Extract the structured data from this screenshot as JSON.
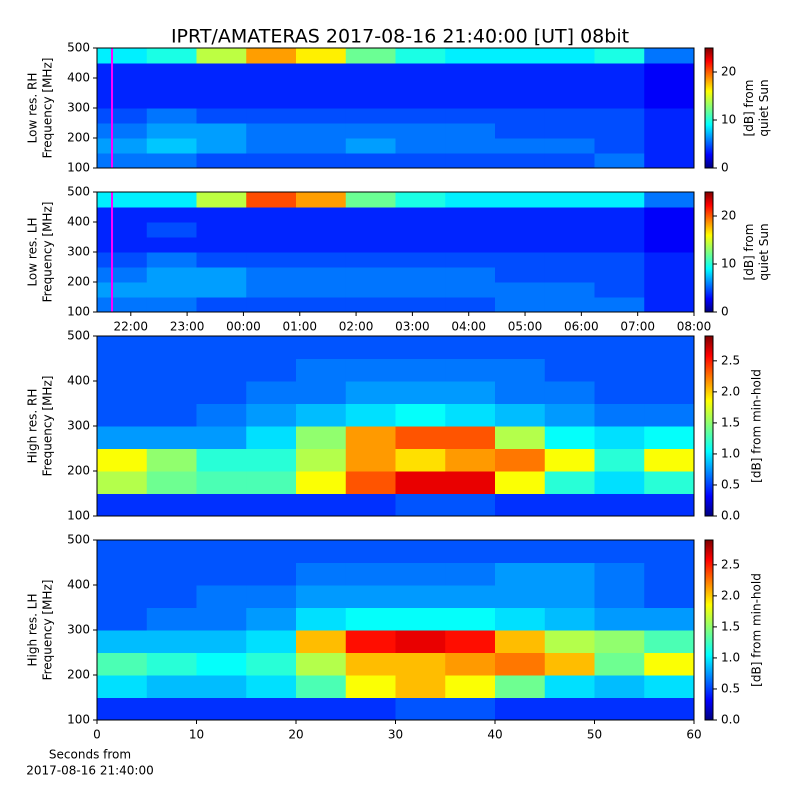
{
  "title": "IPRT/AMATERAS 2017-08-16 21:40:00 [UT]   08bit",
  "chart_data": [
    {
      "type": "heatmap",
      "colormap": "jet",
      "ylabel": [
        "Low res. RH",
        "Frequency [MHz]"
      ],
      "xlim": [
        21.4,
        32
      ],
      "ylim": [
        100,
        500
      ],
      "yticks": [
        100,
        200,
        300,
        400,
        500
      ],
      "marker_x": 21.6667,
      "marker_color": "#ff00ff",
      "clim": [
        0,
        25
      ],
      "cticks": [
        0,
        10,
        20
      ],
      "clabel": [
        "[dB] from",
        "quiet Sun"
      ],
      "z": [
        [
          6,
          6,
          5,
          5,
          5,
          5,
          5,
          5,
          5,
          5,
          6,
          4
        ],
        [
          7,
          8,
          7,
          6,
          6,
          7,
          6,
          6,
          6,
          6,
          5,
          4
        ],
        [
          6,
          7,
          7,
          6,
          6,
          6,
          6,
          6,
          5,
          5,
          5,
          4
        ],
        [
          5,
          6,
          5,
          5,
          5,
          5,
          5,
          5,
          5,
          5,
          5,
          4
        ],
        [
          4,
          4,
          4,
          4,
          4,
          4,
          4,
          4,
          4,
          4,
          4,
          3
        ],
        [
          4,
          4,
          4,
          4,
          4,
          4,
          4,
          4,
          4,
          4,
          4,
          3
        ],
        [
          4,
          4,
          4,
          4,
          4,
          4,
          4,
          4,
          4,
          4,
          4,
          3
        ],
        [
          9,
          10,
          14,
          18,
          16,
          12,
          10,
          9,
          9,
          9,
          10,
          6
        ]
      ]
    },
    {
      "type": "heatmap",
      "colormap": "jet",
      "ylabel": [
        "Low res. LH",
        "Frequency [MHz]"
      ],
      "xlim": [
        21.4,
        32
      ],
      "ylim": [
        100,
        500
      ],
      "yticks": [
        100,
        200,
        300,
        400,
        500
      ],
      "xticks": [
        {
          "value": 22,
          "label": "22:00"
        },
        {
          "value": 23,
          "label": "23:00"
        },
        {
          "value": 24,
          "label": "00:00"
        },
        {
          "value": 25,
          "label": "01:00"
        },
        {
          "value": 26,
          "label": "02:00"
        },
        {
          "value": 27,
          "label": "03:00"
        },
        {
          "value": 28,
          "label": "04:00"
        },
        {
          "value": 29,
          "label": "05:00"
        },
        {
          "value": 30,
          "label": "06:00"
        },
        {
          "value": 31,
          "label": "07:00"
        },
        {
          "value": 32,
          "label": "08:00"
        }
      ],
      "marker_x": 21.6667,
      "marker_color": "#ff00ff",
      "clim": [
        0,
        25
      ],
      "cticks": [
        0,
        10,
        20
      ],
      "clabel": [
        "[dB] from",
        "quiet Sun"
      ],
      "z": [
        [
          6,
          6,
          5,
          5,
          5,
          5,
          5,
          5,
          6,
          6,
          6,
          4
        ],
        [
          7,
          7,
          7,
          6,
          6,
          6,
          6,
          6,
          6,
          6,
          5,
          4
        ],
        [
          6,
          7,
          7,
          6,
          6,
          6,
          6,
          6,
          5,
          5,
          5,
          4
        ],
        [
          5,
          6,
          5,
          5,
          5,
          5,
          5,
          5,
          5,
          5,
          5,
          4
        ],
        [
          4,
          4,
          4,
          4,
          4,
          4,
          4,
          4,
          4,
          4,
          4,
          3
        ],
        [
          4,
          5,
          4,
          4,
          4,
          4,
          4,
          4,
          4,
          4,
          4,
          3
        ],
        [
          4,
          4,
          4,
          4,
          4,
          4,
          4,
          4,
          4,
          4,
          4,
          3
        ],
        [
          9,
          9,
          14,
          20,
          18,
          12,
          10,
          9,
          9,
          9,
          9,
          6
        ]
      ]
    },
    {
      "type": "heatmap",
      "colormap": "jet",
      "ylabel": [
        "High res. RH",
        "Frequency [MHz]"
      ],
      "xlim": [
        0,
        60
      ],
      "ylim": [
        100,
        500
      ],
      "yticks": [
        100,
        200,
        300,
        400,
        500
      ],
      "clim": [
        0,
        2.9
      ],
      "cticks": [
        {
          "value": 0,
          "label": "0.0"
        },
        {
          "value": 0.5,
          "label": "0.5"
        },
        {
          "value": 1,
          "label": "1.0"
        },
        {
          "value": 1.5,
          "label": "1.5"
        },
        {
          "value": 2,
          "label": "2.0"
        },
        {
          "value": 2.5,
          "label": "2.5"
        }
      ],
      "clabel": [
        "[dB] from min-hold"
      ],
      "z": [
        [
          0.5,
          0.5,
          0.5,
          0.5,
          0.5,
          0.5,
          0.6,
          0.6,
          0.5,
          0.5,
          0.5,
          0.5
        ],
        [
          1.6,
          1.4,
          1.3,
          1.3,
          1.8,
          2.3,
          2.6,
          2.6,
          1.8,
          1.2,
          1.0,
          1.2
        ],
        [
          1.8,
          1.5,
          1.2,
          1.2,
          1.6,
          2.1,
          1.9,
          2.1,
          2.2,
          1.8,
          1.2,
          1.8
        ],
        [
          0.8,
          0.8,
          0.8,
          1.0,
          1.5,
          2.1,
          2.3,
          2.3,
          1.6,
          1.1,
          1.0,
          1.1
        ],
        [
          0.6,
          0.6,
          0.7,
          0.8,
          0.9,
          1.0,
          1.1,
          1.0,
          0.9,
          0.8,
          0.7,
          0.7
        ],
        [
          0.6,
          0.6,
          0.6,
          0.7,
          0.7,
          0.8,
          0.8,
          0.8,
          0.7,
          0.7,
          0.6,
          0.6
        ],
        [
          0.6,
          0.6,
          0.6,
          0.6,
          0.7,
          0.7,
          0.7,
          0.7,
          0.7,
          0.6,
          0.6,
          0.6
        ],
        [
          0.6,
          0.6,
          0.6,
          0.6,
          0.6,
          0.6,
          0.6,
          0.6,
          0.6,
          0.6,
          0.6,
          0.6
        ]
      ]
    },
    {
      "type": "heatmap",
      "colormap": "jet",
      "ylabel": [
        "High res. LH",
        "Frequency [MHz]"
      ],
      "xlabel": [
        "Seconds from",
        "2017-08-16 21:40:00"
      ],
      "xlim": [
        0,
        60
      ],
      "ylim": [
        100,
        500
      ],
      "yticks": [
        100,
        200,
        300,
        400,
        500
      ],
      "xticks": [
        0,
        10,
        20,
        30,
        40,
        50,
        60
      ],
      "clim": [
        0,
        2.9
      ],
      "cticks": [
        {
          "value": 0,
          "label": "0.0"
        },
        {
          "value": 0.5,
          "label": "0.5"
        },
        {
          "value": 1,
          "label": "1.0"
        },
        {
          "value": 1.5,
          "label": "1.5"
        },
        {
          "value": 2,
          "label": "2.0"
        },
        {
          "value": 2.5,
          "label": "2.5"
        }
      ],
      "clabel": [
        "[dB] from min-hold"
      ],
      "z": [
        [
          0.5,
          0.5,
          0.5,
          0.5,
          0.5,
          0.5,
          0.6,
          0.6,
          0.5,
          0.5,
          0.5,
          0.5
        ],
        [
          1.0,
          0.9,
          0.9,
          1.0,
          1.3,
          1.8,
          2.0,
          1.8,
          1.4,
          1.0,
          0.9,
          1.0
        ],
        [
          1.3,
          1.2,
          1.1,
          1.2,
          1.6,
          2.0,
          2.0,
          2.1,
          2.2,
          2.0,
          1.4,
          1.8
        ],
        [
          0.9,
          0.9,
          0.9,
          1.0,
          2.0,
          2.5,
          2.6,
          2.5,
          2.0,
          1.6,
          1.5,
          1.3
        ],
        [
          0.6,
          0.7,
          0.7,
          0.8,
          1.0,
          1.1,
          1.1,
          1.1,
          1.0,
          0.9,
          0.8,
          0.8
        ],
        [
          0.6,
          0.6,
          0.7,
          0.7,
          0.8,
          0.8,
          0.8,
          0.8,
          0.8,
          0.8,
          0.7,
          0.6
        ],
        [
          0.6,
          0.6,
          0.6,
          0.6,
          0.7,
          0.7,
          0.7,
          0.7,
          0.8,
          0.8,
          0.7,
          0.6
        ],
        [
          0.6,
          0.6,
          0.6,
          0.6,
          0.6,
          0.6,
          0.6,
          0.6,
          0.6,
          0.6,
          0.6,
          0.6
        ]
      ]
    }
  ]
}
